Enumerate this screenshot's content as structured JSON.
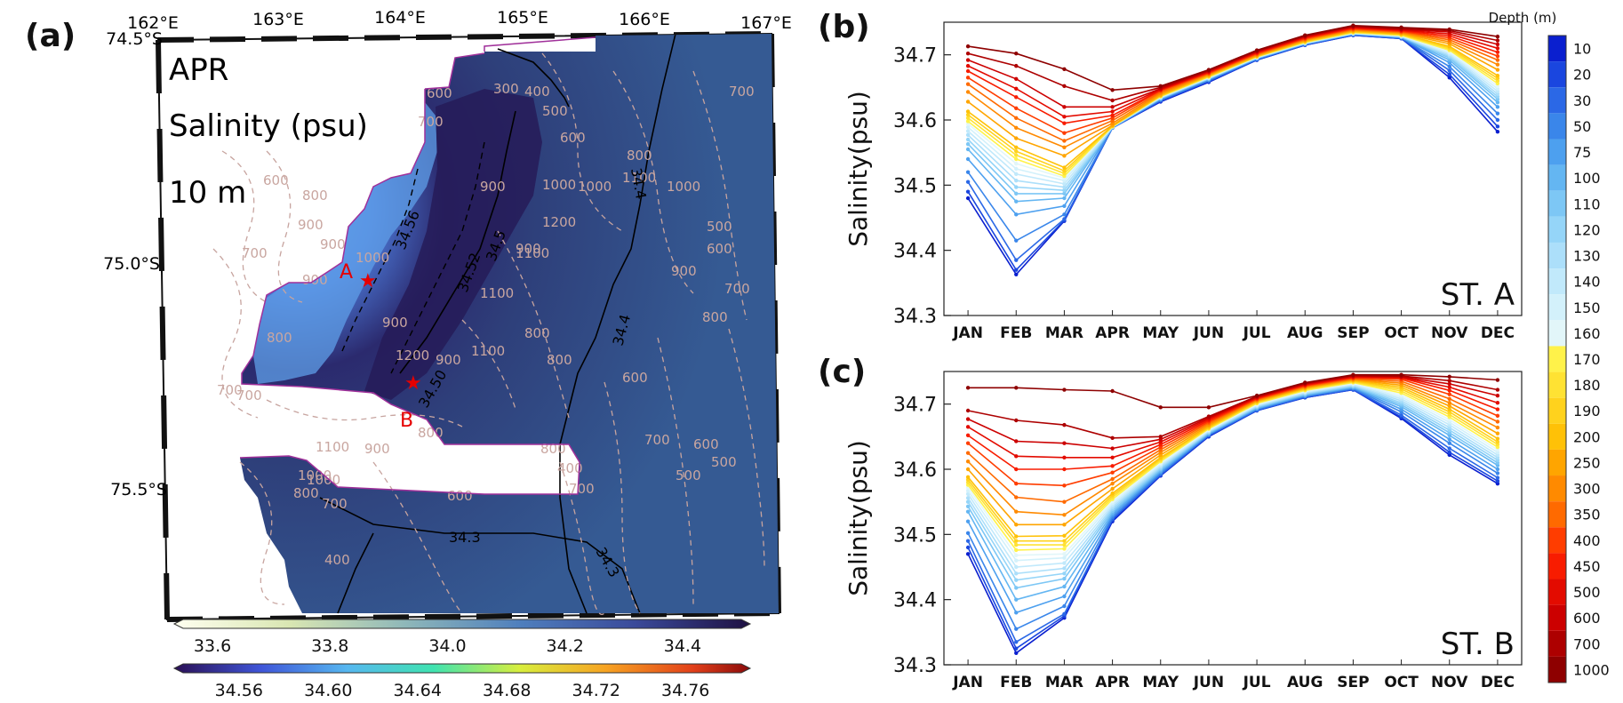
{
  "panels": {
    "a": {
      "label": "(a)",
      "month": "APR",
      "variable": "Salinity (psu)",
      "depth": "10 m",
      "lon_labels": [
        "162°E",
        "163°E",
        "164°E",
        "165°E",
        "166°E",
        "167°E"
      ],
      "lat_labels": [
        "74.5°S",
        "75.0°S",
        "75.5°S"
      ],
      "stations": [
        "A",
        "B"
      ],
      "isohaline_labels": [
        "34.56",
        "34.52",
        "34.5",
        "34.4",
        "34.4",
        "34.3",
        "34.3",
        "34.50"
      ],
      "bathy_labels": [
        "300",
        "400",
        "500",
        "600",
        "700",
        "800",
        "900",
        "1000",
        "1100",
        "1200",
        "600",
        "800",
        "900",
        "700",
        "900",
        "1000",
        "900",
        "800",
        "700",
        "1100",
        "900",
        "800",
        "1100",
        "1000",
        "900",
        "700",
        "800",
        "600",
        "500",
        "400",
        "1000",
        "1100",
        "800",
        "900",
        "700",
        "600",
        "500",
        "700",
        "800",
        "900",
        "1000",
        "1100",
        "1200",
        "700",
        "500",
        "600",
        "700",
        "800",
        "1000",
        "900",
        "600",
        "700",
        "800",
        "600",
        "400"
      ],
      "colorbar_upper": {
        "ticks": [
          "33.6",
          "33.8",
          "34.0",
          "34.2",
          "34.4"
        ],
        "range": [
          33.55,
          34.5
        ]
      },
      "colorbar_lower": {
        "ticks": [
          "34.56",
          "34.60",
          "34.64",
          "34.68",
          "34.72",
          "34.76"
        ],
        "range": [
          34.535,
          34.785
        ]
      }
    },
    "b": {
      "label": "(b)",
      "station": "ST. A"
    },
    "c": {
      "label": "(c)",
      "station": "ST. B"
    }
  },
  "legend": {
    "title": "Depth (m)",
    "depths": [
      "10",
      "20",
      "30",
      "50",
      "75",
      "100",
      "110",
      "120",
      "130",
      "140",
      "150",
      "160",
      "170",
      "180",
      "190",
      "200",
      "250",
      "300",
      "350",
      "400",
      "450",
      "500",
      "600",
      "700",
      "1000"
    ],
    "colors": [
      "#0a1fcf",
      "#1a46df",
      "#2b68e6",
      "#3a86ea",
      "#4da0ef",
      "#64b6f2",
      "#7dc7f5",
      "#95d5f8",
      "#acdffa",
      "#c1e9fb",
      "#d3f1fb",
      "#e2f6f9",
      "#fff24a",
      "#ffe233",
      "#ffd21d",
      "#ffc107",
      "#ffa500",
      "#ff8a00",
      "#ff6a00",
      "#ff3d00",
      "#f81c00",
      "#e30b00",
      "#cc0000",
      "#ad0000",
      "#8e0000"
    ]
  },
  "chart_data": [
    {
      "type": "line",
      "title": "ST. A",
      "xlabel": "",
      "ylabel": "Salinity(psu)",
      "ylim": [
        34.3,
        34.75
      ],
      "yticks": [
        "34.3",
        "34.4",
        "34.5",
        "34.6",
        "34.7"
      ],
      "categories": [
        "JAN",
        "FEB",
        "MAR",
        "APR",
        "MAY",
        "JUN",
        "JUL",
        "AUG",
        "SEP",
        "OCT",
        "NOV",
        "DEC"
      ],
      "series": [
        {
          "name": "10",
          "values": [
            34.48,
            34.363,
            34.445,
            34.588,
            34.628,
            34.658,
            34.692,
            34.715,
            34.73,
            34.725,
            34.665,
            34.582
          ]
        },
        {
          "name": "20",
          "values": [
            34.49,
            34.37,
            34.446,
            34.588,
            34.629,
            34.659,
            34.692,
            34.715,
            34.73,
            34.725,
            34.67,
            34.59
          ]
        },
        {
          "name": "30",
          "values": [
            34.505,
            34.385,
            34.448,
            34.588,
            34.63,
            34.66,
            34.693,
            34.716,
            34.731,
            34.726,
            34.676,
            34.6
          ]
        },
        {
          "name": "50",
          "values": [
            34.52,
            34.415,
            34.455,
            34.588,
            34.631,
            34.661,
            34.694,
            34.716,
            34.731,
            34.726,
            34.682,
            34.61
          ]
        },
        {
          "name": "75",
          "values": [
            34.54,
            34.455,
            34.468,
            34.589,
            34.632,
            34.662,
            34.694,
            34.717,
            34.732,
            34.727,
            34.688,
            34.62
          ]
        },
        {
          "name": "100",
          "values": [
            34.555,
            34.475,
            34.48,
            34.589,
            34.633,
            34.663,
            34.695,
            34.717,
            34.732,
            34.727,
            34.692,
            34.627
          ]
        },
        {
          "name": "110",
          "values": [
            34.563,
            34.487,
            34.487,
            34.589,
            34.633,
            34.663,
            34.695,
            34.717,
            34.732,
            34.728,
            34.695,
            34.632
          ]
        },
        {
          "name": "120",
          "values": [
            34.57,
            34.497,
            34.492,
            34.589,
            34.634,
            34.664,
            34.695,
            34.718,
            34.733,
            34.728,
            34.697,
            34.636
          ]
        },
        {
          "name": "130",
          "values": [
            34.577,
            34.507,
            34.497,
            34.589,
            34.634,
            34.664,
            34.696,
            34.718,
            34.733,
            34.728,
            34.699,
            34.64
          ]
        },
        {
          "name": "140",
          "values": [
            34.583,
            34.517,
            34.502,
            34.59,
            34.635,
            34.665,
            34.696,
            34.718,
            34.733,
            34.729,
            34.701,
            34.644
          ]
        },
        {
          "name": "150",
          "values": [
            34.589,
            34.525,
            34.507,
            34.59,
            34.635,
            34.665,
            34.696,
            34.719,
            34.734,
            34.729,
            34.703,
            34.648
          ]
        },
        {
          "name": "160",
          "values": [
            34.594,
            34.533,
            34.511,
            34.59,
            34.636,
            34.666,
            34.697,
            34.719,
            34.734,
            34.73,
            34.705,
            34.652
          ]
        },
        {
          "name": "170",
          "values": [
            34.598,
            34.54,
            34.514,
            34.59,
            34.636,
            34.666,
            34.697,
            34.719,
            34.734,
            34.73,
            34.707,
            34.656
          ]
        },
        {
          "name": "180",
          "values": [
            34.603,
            34.546,
            34.518,
            34.59,
            34.637,
            34.667,
            34.697,
            34.72,
            34.735,
            34.731,
            34.709,
            34.66
          ]
        },
        {
          "name": "190",
          "values": [
            34.608,
            34.552,
            34.522,
            34.591,
            34.637,
            34.667,
            34.698,
            34.72,
            34.735,
            34.731,
            34.711,
            34.664
          ]
        },
        {
          "name": "200",
          "values": [
            34.613,
            34.558,
            34.527,
            34.591,
            34.638,
            34.668,
            34.698,
            34.721,
            34.736,
            34.732,
            34.713,
            34.668
          ]
        },
        {
          "name": "250",
          "values": [
            34.628,
            34.572,
            34.545,
            34.592,
            34.639,
            34.669,
            34.699,
            34.722,
            34.737,
            34.733,
            34.717,
            34.677
          ]
        },
        {
          "name": "300",
          "values": [
            34.643,
            34.588,
            34.558,
            34.595,
            34.641,
            34.67,
            34.7,
            34.723,
            34.738,
            34.734,
            34.72,
            34.685
          ]
        },
        {
          "name": "350",
          "values": [
            34.655,
            34.603,
            34.568,
            34.599,
            34.643,
            34.671,
            34.701,
            34.724,
            34.739,
            34.735,
            34.723,
            34.692
          ]
        },
        {
          "name": "400",
          "values": [
            34.665,
            34.618,
            34.58,
            34.603,
            34.645,
            34.672,
            34.702,
            34.725,
            34.74,
            34.736,
            34.726,
            34.698
          ]
        },
        {
          "name": "450",
          "values": [
            34.675,
            34.635,
            34.595,
            34.607,
            34.646,
            34.673,
            34.703,
            34.726,
            34.741,
            34.737,
            34.729,
            34.704
          ]
        },
        {
          "name": "500",
          "values": [
            34.683,
            34.648,
            34.605,
            34.613,
            34.647,
            34.674,
            34.704,
            34.727,
            34.742,
            34.738,
            34.732,
            34.71
          ]
        },
        {
          "name": "600",
          "values": [
            34.692,
            34.663,
            34.62,
            34.62,
            34.648,
            34.675,
            34.705,
            34.728,
            34.743,
            34.739,
            34.735,
            34.716
          ]
        },
        {
          "name": "700",
          "values": [
            34.702,
            34.683,
            34.652,
            34.63,
            34.65,
            34.676,
            34.706,
            34.729,
            34.744,
            34.74,
            34.737,
            34.722
          ]
        },
        {
          "name": "1000",
          "values": [
            34.713,
            34.702,
            34.678,
            34.646,
            34.652,
            34.677,
            34.707,
            34.73,
            34.745,
            34.742,
            34.739,
            34.728
          ]
        }
      ]
    },
    {
      "type": "line",
      "title": "ST. B",
      "xlabel": "",
      "ylabel": "Salinity(psu)",
      "ylim": [
        34.3,
        34.75
      ],
      "yticks": [
        "34.3",
        "34.4",
        "34.5",
        "34.6",
        "34.7"
      ],
      "categories": [
        "JAN",
        "FEB",
        "MAR",
        "APR",
        "MAY",
        "JUN",
        "JUL",
        "AUG",
        "SEP",
        "OCT",
        "NOV",
        "DEC"
      ],
      "series": [
        {
          "name": "10",
          "values": [
            34.47,
            34.318,
            34.372,
            34.52,
            34.59,
            34.65,
            34.69,
            34.71,
            34.722,
            34.678,
            34.622,
            34.578
          ]
        },
        {
          "name": "20",
          "values": [
            34.48,
            34.325,
            34.375,
            34.522,
            34.591,
            34.651,
            34.69,
            34.71,
            34.722,
            34.68,
            34.626,
            34.582
          ]
        },
        {
          "name": "30",
          "values": [
            34.49,
            34.335,
            34.378,
            34.524,
            34.592,
            34.652,
            34.691,
            34.711,
            34.723,
            34.683,
            34.632,
            34.587
          ]
        },
        {
          "name": "50",
          "values": [
            34.502,
            34.355,
            34.39,
            34.527,
            34.594,
            34.653,
            34.692,
            34.712,
            34.724,
            34.688,
            34.64,
            34.594
          ]
        },
        {
          "name": "75",
          "values": [
            34.52,
            34.38,
            34.405,
            34.53,
            34.596,
            34.654,
            34.693,
            34.713,
            34.725,
            34.692,
            34.646,
            34.6
          ]
        },
        {
          "name": "100",
          "values": [
            34.535,
            34.4,
            34.42,
            34.533,
            34.598,
            34.655,
            34.694,
            34.714,
            34.726,
            34.696,
            34.652,
            34.606
          ]
        },
        {
          "name": "110",
          "values": [
            34.543,
            34.418,
            34.432,
            34.536,
            34.6,
            34.656,
            34.695,
            34.715,
            34.727,
            34.699,
            34.656,
            34.61
          ]
        },
        {
          "name": "120",
          "values": [
            34.55,
            34.43,
            34.44,
            34.539,
            34.602,
            34.657,
            34.696,
            34.716,
            34.728,
            34.702,
            34.66,
            34.614
          ]
        },
        {
          "name": "130",
          "values": [
            34.556,
            34.44,
            34.448,
            34.542,
            34.604,
            34.658,
            34.697,
            34.717,
            34.729,
            34.705,
            34.664,
            34.618
          ]
        },
        {
          "name": "140",
          "values": [
            34.562,
            34.45,
            34.456,
            34.545,
            34.606,
            34.659,
            34.698,
            34.718,
            34.73,
            34.708,
            34.668,
            34.622
          ]
        },
        {
          "name": "150",
          "values": [
            34.567,
            34.46,
            34.464,
            34.548,
            34.608,
            34.66,
            34.699,
            34.719,
            34.731,
            34.711,
            34.672,
            34.626
          ]
        },
        {
          "name": "160",
          "values": [
            34.572,
            34.468,
            34.47,
            34.551,
            34.61,
            34.661,
            34.7,
            34.72,
            34.732,
            34.714,
            34.676,
            34.63
          ]
        },
        {
          "name": "170",
          "values": [
            34.576,
            34.476,
            34.478,
            34.554,
            34.612,
            34.662,
            34.701,
            34.721,
            34.733,
            34.717,
            34.68,
            34.634
          ]
        },
        {
          "name": "180",
          "values": [
            34.58,
            34.484,
            34.484,
            34.557,
            34.614,
            34.663,
            34.702,
            34.722,
            34.734,
            34.72,
            34.684,
            34.638
          ]
        },
        {
          "name": "190",
          "values": [
            34.584,
            34.49,
            34.49,
            34.56,
            34.616,
            34.664,
            34.703,
            34.723,
            34.735,
            34.723,
            34.688,
            34.642
          ]
        },
        {
          "name": "200",
          "values": [
            34.588,
            34.497,
            34.498,
            34.563,
            34.618,
            34.665,
            34.704,
            34.724,
            34.736,
            34.726,
            34.692,
            34.647
          ]
        },
        {
          "name": "250",
          "values": [
            34.6,
            34.515,
            34.515,
            34.57,
            34.622,
            34.667,
            34.705,
            34.725,
            34.737,
            34.729,
            34.697,
            34.655
          ]
        },
        {
          "name": "300",
          "values": [
            34.612,
            34.535,
            34.53,
            34.578,
            34.626,
            34.669,
            34.706,
            34.726,
            34.738,
            34.732,
            34.702,
            34.664
          ]
        },
        {
          "name": "350",
          "values": [
            34.625,
            34.557,
            34.55,
            34.585,
            34.63,
            34.671,
            34.707,
            34.727,
            34.739,
            34.735,
            34.708,
            34.673
          ]
        },
        {
          "name": "400",
          "values": [
            34.64,
            34.578,
            34.575,
            34.595,
            34.634,
            34.673,
            34.708,
            34.728,
            34.74,
            34.738,
            34.715,
            34.682
          ]
        },
        {
          "name": "450",
          "values": [
            34.652,
            34.6,
            34.6,
            34.605,
            34.638,
            34.675,
            34.709,
            34.729,
            34.741,
            34.74,
            34.721,
            34.692
          ]
        },
        {
          "name": "500",
          "values": [
            34.665,
            34.62,
            34.618,
            34.618,
            34.642,
            34.677,
            34.71,
            34.73,
            34.742,
            34.741,
            34.726,
            34.702
          ]
        },
        {
          "name": "600",
          "values": [
            34.677,
            34.643,
            34.64,
            34.632,
            34.646,
            34.679,
            34.711,
            34.731,
            34.743,
            34.742,
            34.731,
            34.713
          ]
        },
        {
          "name": "700",
          "values": [
            34.69,
            34.675,
            34.668,
            34.648,
            34.65,
            34.681,
            34.712,
            34.732,
            34.744,
            34.743,
            34.736,
            34.722
          ]
        },
        {
          "name": "1000",
          "values": [
            34.725,
            34.725,
            34.722,
            34.72,
            34.695,
            34.695,
            34.713,
            34.733,
            34.745,
            34.745,
            34.742,
            34.737
          ]
        }
      ]
    }
  ]
}
